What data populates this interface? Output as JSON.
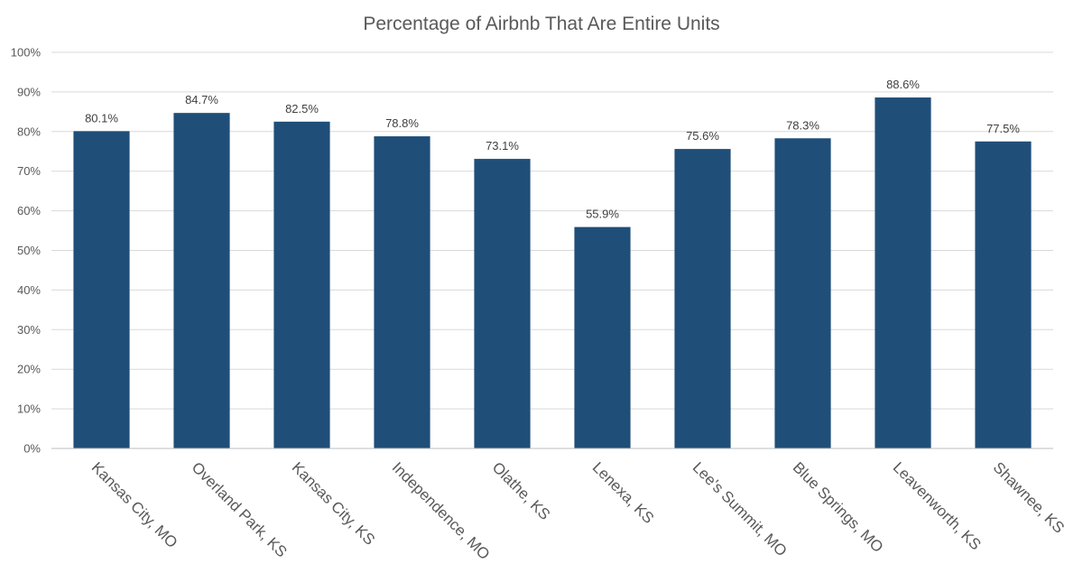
{
  "chart_data": {
    "type": "bar",
    "title": "Percentage of Airbnb That Are Entire Units",
    "xlabel": "",
    "ylabel": "",
    "categories": [
      "Kansas City, MO",
      "Overland Park, KS",
      "Kansas City, KS",
      "Independence, MO",
      "Olathe, KS",
      "Lenexa, KS",
      "Lee's Summit, MO",
      "Blue Springs, MO",
      "Leavenworth, KS",
      "Shawnee, KS"
    ],
    "values": [
      80.1,
      84.7,
      82.5,
      78.8,
      73.1,
      55.9,
      75.6,
      78.3,
      88.6,
      77.5
    ],
    "value_labels": [
      "80.1%",
      "84.7%",
      "82.5%",
      "78.8%",
      "73.1%",
      "55.9%",
      "75.6%",
      "78.3%",
      "88.6%",
      "77.5%"
    ],
    "ylim": [
      0,
      100
    ],
    "yticks": [
      0,
      10,
      20,
      30,
      40,
      50,
      60,
      70,
      80,
      90,
      100
    ],
    "ytick_labels": [
      "0%",
      "10%",
      "20%",
      "30%",
      "40%",
      "50%",
      "60%",
      "70%",
      "80%",
      "90%",
      "100%"
    ],
    "grid": true,
    "legend": "none",
    "bar_color": "#1f4e79"
  }
}
